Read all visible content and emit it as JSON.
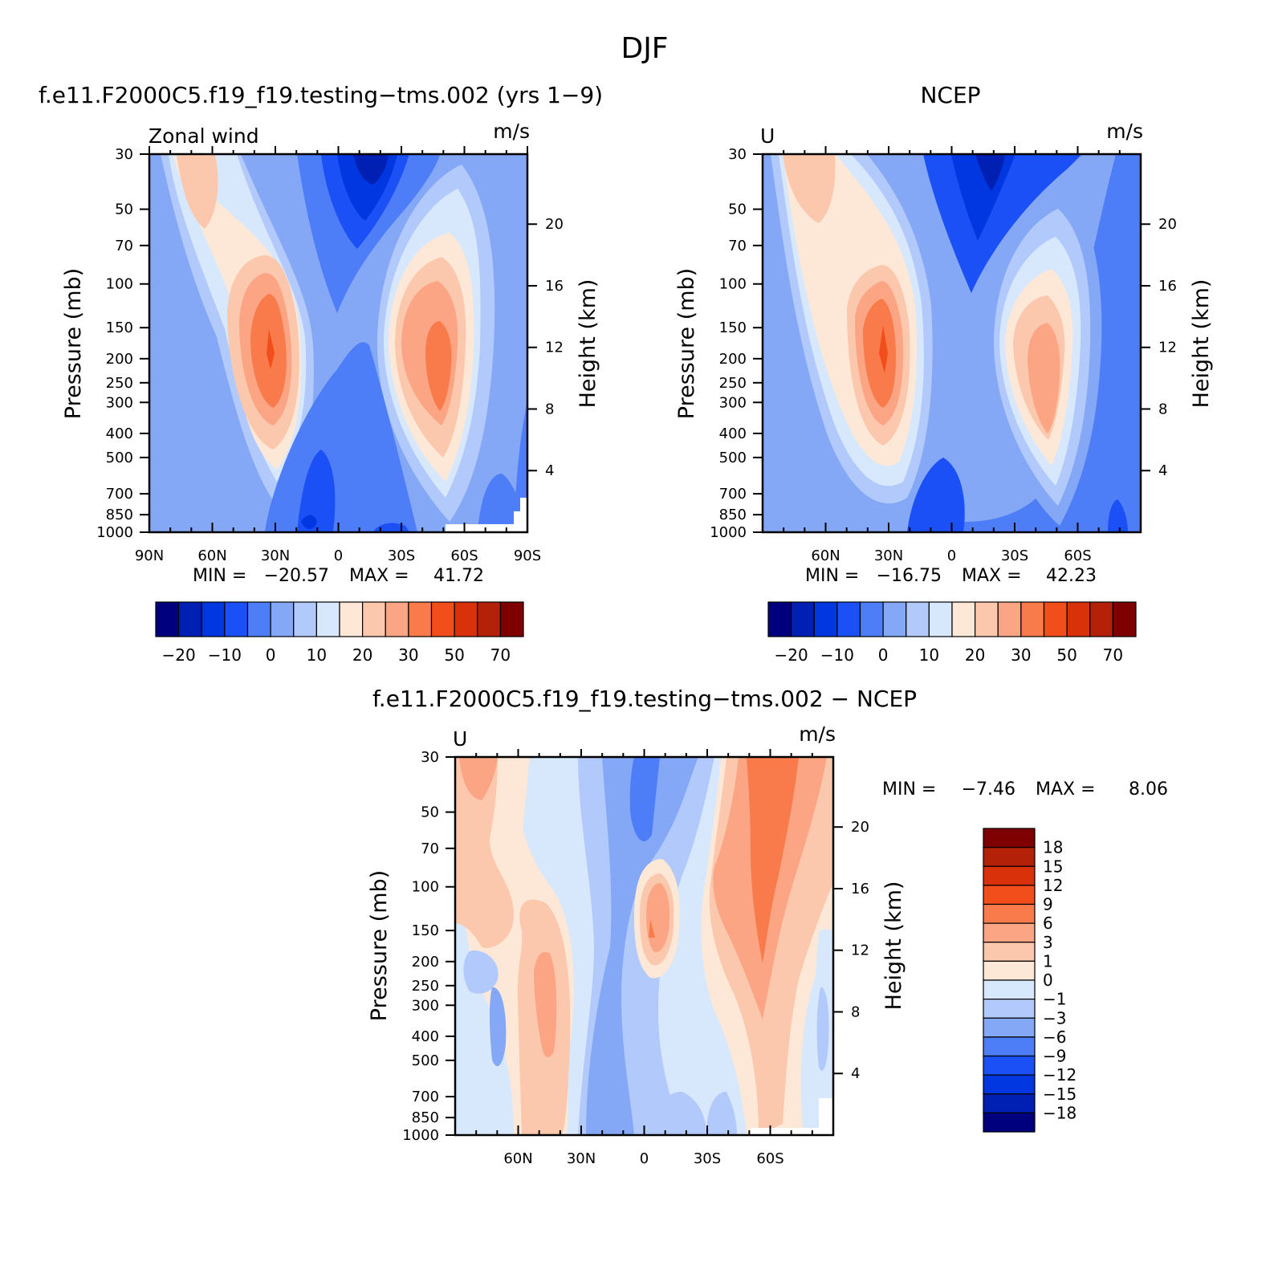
{
  "figure": {
    "title": "DJF"
  },
  "chart_data": [
    {
      "type": "heatmap",
      "title": "f.e11.F2000C5.f19_f19.testing−tms.002 (yrs 1−9)",
      "left_label": "Zonal wind",
      "units": "m/s",
      "ylabel": "Pressure (mb)",
      "ylabel_right": "Height (km)",
      "x_ticks": [
        "90N",
        "60N",
        "30N",
        "0",
        "30S",
        "60S",
        "90S"
      ],
      "y_ticks": [
        "30",
        "50",
        "70",
        "100",
        "150",
        "200",
        "250",
        "300",
        "400",
        "500",
        "700",
        "850",
        "1000"
      ],
      "height_ticks": [
        "20",
        "16",
        "12",
        "8",
        "4"
      ],
      "min_label": "MIN =",
      "min_value": "−20.57",
      "max_label": "MAX =",
      "max_value": "41.72",
      "colorbar_labels": [
        "−20",
        "−10",
        "0",
        "10",
        "20",
        "30",
        "50",
        "70"
      ],
      "features": [
        {
          "lat": 30,
          "p": 200,
          "value": 41.72,
          "kind": "westerly jet max"
        },
        {
          "lat": -45,
          "p": 250,
          "value": 40,
          "kind": "westerly jet max"
        },
        {
          "lat": -15,
          "p": 30,
          "value": -20.57,
          "kind": "easterly min"
        }
      ]
    },
    {
      "type": "heatmap",
      "title": "NCEP",
      "left_label": "U",
      "units": "m/s",
      "ylabel": "Pressure (mb)",
      "ylabel_right": "Height (km)",
      "x_ticks": [
        "60N",
        "30N",
        "0",
        "30S",
        "60S"
      ],
      "y_ticks": [
        "30",
        "50",
        "70",
        "100",
        "150",
        "200",
        "250",
        "300",
        "400",
        "500",
        "700",
        "850",
        "1000"
      ],
      "height_ticks": [
        "20",
        "16",
        "12",
        "8",
        "4"
      ],
      "min_label": "MIN =",
      "min_value": "−16.75",
      "max_label": "MAX =",
      "max_value": "42.23",
      "colorbar_labels": [
        "−20",
        "−10",
        "0",
        "10",
        "20",
        "30",
        "50",
        "70"
      ],
      "features": [
        {
          "lat": 30,
          "p": 200,
          "value": 42.23,
          "kind": "westerly jet max"
        },
        {
          "lat": -45,
          "p": 250,
          "value": 32,
          "kind": "westerly jet max"
        },
        {
          "lat": -15,
          "p": 30,
          "value": -16.75,
          "kind": "easterly min"
        }
      ]
    },
    {
      "type": "heatmap",
      "title": "f.e11.F2000C5.f19_f19.testing−tms.002 − NCEP",
      "left_label": "U",
      "units": "m/s",
      "ylabel": "Pressure (mb)",
      "ylabel_right": "Height (km)",
      "x_ticks": [
        "60N",
        "30N",
        "0",
        "30S",
        "60S"
      ],
      "y_ticks": [
        "30",
        "50",
        "70",
        "100",
        "150",
        "200",
        "250",
        "300",
        "400",
        "500",
        "700",
        "850",
        "1000"
      ],
      "height_ticks": [
        "20",
        "16",
        "12",
        "8",
        "4"
      ],
      "min_label": "MIN =",
      "min_value": "−7.46",
      "max_label": "MAX =",
      "max_value": "8.06",
      "colorbar_labels": [
        "18",
        "15",
        "12",
        "9",
        "6",
        "3",
        "1",
        "0",
        "−1",
        "−3",
        "−6",
        "−9",
        "−12",
        "−15",
        "−18"
      ]
    }
  ],
  "colors": {
    "abs_scale": [
      "#00007f",
      "#0020b4",
      "#0037e0",
      "#1a50f5",
      "#4d7ef7",
      "#84a7f6",
      "#b2c9fb",
      "#d8e8fc",
      "#fde8d8",
      "#fcc8ad",
      "#fba585",
      "#f97a4b",
      "#f24e1c",
      "#d9310a",
      "#b32208",
      "#7f0000"
    ],
    "diff_scale": [
      "#7f0000",
      "#b32208",
      "#d9310a",
      "#f24e1c",
      "#f97a4b",
      "#fba585",
      "#fcc8ad",
      "#fde8d8",
      "#d8e8fc",
      "#b2c9fb",
      "#84a7f6",
      "#4d7ef7",
      "#1a50f5",
      "#0037e0",
      "#0020b4",
      "#00007f"
    ]
  }
}
